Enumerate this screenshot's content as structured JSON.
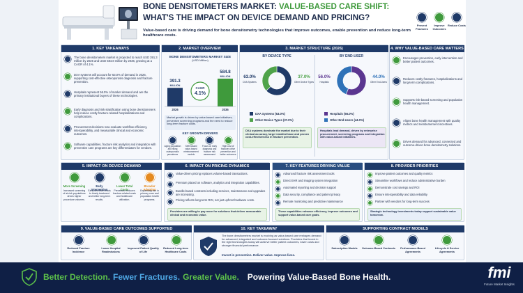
{
  "header": {
    "title_a": "BONE DENSITOMETERS MARKET:",
    "title_b": "VALUE-BASED CARE SHIFT:",
    "title_c": "WHAT'S THE IMPACT ON DEVICE DEMAND AND PRICING?",
    "subtitle": "Value-based care is driving demand for bone densitometry technologies that improve outcomes, enable prevention and reduce long-term healthcare costs.",
    "badges": [
      "Prevent Fractures",
      "Improve Outcomes",
      "Reduce Costs"
    ]
  },
  "key_takeaways": {
    "title": "1. KEY TAKEAWAYS",
    "items": [
      "The bone densitometers market is projected to reach USD 391.3 million by 2026 and USD 584.8 million by 2036, growing at a CAGR of 4.1%.",
      "DXA systems will account for 63.0% of demand in 2026, supporting cost-effective osteoporosis diagnosis and fracture prevention.",
      "Hospitals represent 56.0% of market demand and are the primary institutional buyers of these technologies.",
      "Early diagnosis and risk stratification using bone densitometers help reduce costly fracture-related hospitalizations and complications.",
      "Procurement decisions now evaluate workflow efficiency, interoperability, and measurable clinical and economic outcomes.",
      "Software capabilities, fracture risk analytics and integration with preventive care programs are key differentiators for vendors."
    ]
  },
  "market_overview": {
    "title": "2. MARKET OVERVIEW",
    "chart_title": "BONE DENSITOMETERS MARKET SIZE",
    "chart_unit": "(USD Million)",
    "bars": [
      {
        "value": 391.3,
        "unit": "MILLION",
        "year": "2026",
        "color": "#1f3a68"
      },
      {
        "value": 584.8,
        "unit": "MILLION",
        "year": "2036",
        "color": "#3f9a3c"
      }
    ],
    "cagr_label": "CAGR",
    "cagr": "4.1%",
    "summary": "Market growth is driven by value-based care initiatives, preventive screening programs and the need to reduce long-term fracture costs.",
    "drivers_title": "KEY GROWTH DRIVERS",
    "drivers": [
      "Aging population and rising osteoporosis prevalence",
      "Shift toward value-based reimbursement models",
      "Focus on early diagnosis and fracture risk assessment",
      "High cost of fractures drive prevention and better outcomes"
    ]
  },
  "market_structure": {
    "title": "3. MARKET STRUCTURE (2026)",
    "segments": [
      {
        "title": "BY DEVICE TYPE",
        "slices": [
          {
            "name": "DXA Systems",
            "value": 63.0,
            "label": "63.0%",
            "legend": "DXA Systems (63.0%)",
            "color": "#1f3a68"
          },
          {
            "name": "Other Device Types",
            "value": 37.0,
            "label": "37.0%",
            "legend": "Other Device Types (37.0%)",
            "color": "#4fa34a"
          }
        ],
        "note": "DXA systems dominate the market due to their clinical accuracy, large installed base and proven cost-effectiveness in fracture prevention."
      },
      {
        "title": "BY END-USER",
        "slices": [
          {
            "name": "Hospitals",
            "value": 56.0,
            "label": "56.0%",
            "legend": "Hospitals (56.0%)",
            "color": "#5b3690"
          },
          {
            "name": "Other End-Users",
            "value": 44.0,
            "label": "44.0%",
            "legend": "Other End-Users (44.0%)",
            "color": "#2f72b8"
          }
        ],
        "note": "Hospitals lead demand, driven by enterprise procurement, screening programs and integration with value-based initiatives."
      }
    ]
  },
  "why_value": {
    "title": "4. WHY VALUE-BASED CARE MATTERS",
    "items": [
      "Encourages prevention, early intervention and better patient outcomes.",
      "Reduces costly fractures, hospitalizations and long-term complications.",
      "Supports risk-based screening and population health management.",
      "Aligns bone health management with quality metrics and reimbursement incentives.",
      "Drives demand for advanced, connected and outcome-driven bone densitometry solutions."
    ]
  },
  "device_demand": {
    "title": "5. IMPACT ON DEVICE DEMAND",
    "items": [
      {
        "title": "More Screening",
        "text": "Increased screening of at-risk populations drives higher procedure volumes."
      },
      {
        "title": "Early Intervention",
        "text": "Early detection leads to timely treatment and better long-term results."
      },
      {
        "title": "Lower Total Costs",
        "text": "Prevention reduces fracture-related costs and healthcare utilization."
      },
      {
        "title": "Broader Adoption",
        "text": "Expanding use in primary care and population health programs."
      }
    ]
  },
  "pricing": {
    "title": "6. IMPACT ON PRICING DYNAMICS",
    "items": [
      "Value-driven pricing replaces volume-based transactions.",
      "Premium placed on software, analytics and integration capabilities.",
      "Bundle-based contracts including services, maintenance and upgrades are increasing.",
      "Pricing reflects long-term ROI, not just upfront hardware costs."
    ],
    "note": "Providers are willing to pay more for solutions that deliver measurable clinical and economic value."
  },
  "features": {
    "title": "7. KEY FEATURES DRIVING VALUE",
    "items": [
      "Advanced fracture risk assessment tools",
      "Direct EHR and imaging system integration",
      "Automated reporting and decision support",
      "Data security, compliance and patient privacy",
      "Remote monitoring and predictive maintenance"
    ],
    "note": "These capabilities enhance efficiency, improve outcomes and support value-based care goals."
  },
  "priorities": {
    "title": "8. PROVIDER PRIORITIES",
    "items": [
      "Improve patient outcomes and quality metrics",
      "Streamline workflows and reduce administrative burden",
      "Demonstrate cost savings and ROI",
      "Ensure interoperability and data reliability",
      "Partner with vendors for long-term success"
    ],
    "note": "Strategic technology investments today support sustainable value tomorrow."
  },
  "outcomes": {
    "title": "9. VALUE-BASED CARE OUTCOMES SUPPORTED",
    "items": [
      "Reduced Fracture Incidence",
      "Lower Hospital Readmissions",
      "Improved Patient Quality of Life",
      "Reduced Long-term Healthcare Costs"
    ]
  },
  "key_takeaway": {
    "title": "10. KEY TAKEAWAY",
    "text": "The bone densitometers market is evolving as value-based care reshapes demand for advanced, integrated and outcome-focused solutions. Providers that invest in the right technologies today will achieve better patient outcomes, lower costs and stronger financial performance.",
    "tagline": "Invest in prevention. Deliver value. Improve lives."
  },
  "contracts": {
    "title": "SUPPORTING CONTRACT MODELS",
    "items": [
      "Subscription Models",
      "Outcome-Based Contracts",
      "Performance-Based Agreements",
      "Lifecycle & Service Agreements"
    ]
  },
  "footer": {
    "slogan": [
      {
        "text": "Better Detection.",
        "color": "#5cc04a"
      },
      {
        "text": "Fewer Fractures.",
        "color": "#4fa9e6"
      },
      {
        "text": "Greater Value.",
        "color": "#5cc04a"
      }
    ],
    "tagline": "Powering Value-Based Bone Health.",
    "logo": "fmi",
    "logo_sub": "Future Market Insights"
  }
}
